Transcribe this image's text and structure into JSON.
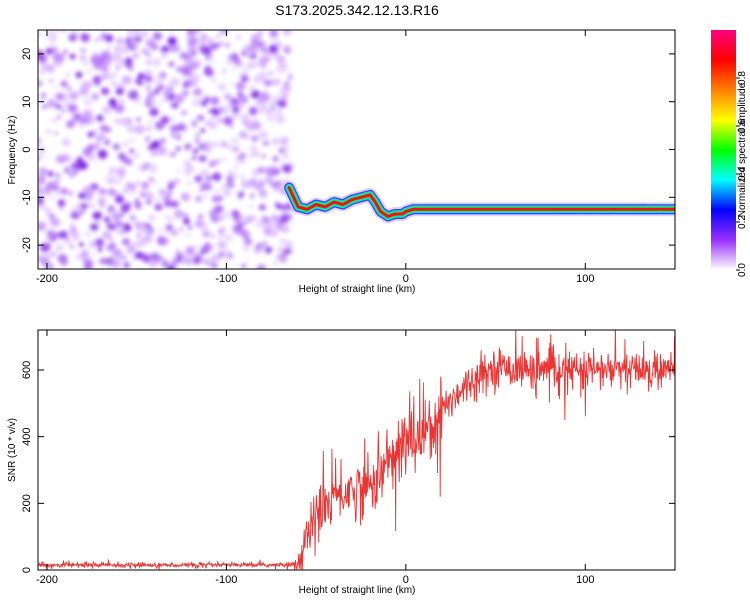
{
  "page_title": "S173.2025.342.12.13.R16",
  "chart_data": [
    {
      "type": "heatmap",
      "xlabel": "Height of straight line (km)",
      "ylabel": "Frequency (Hz)",
      "xlim": [
        -205,
        150
      ],
      "ylim": [
        -25,
        25
      ],
      "x_ticks": [
        -200,
        -100,
        0,
        100
      ],
      "y_ticks": [
        -20,
        -10,
        0,
        10,
        20
      ],
      "noise_region_x": [
        -205,
        -64
      ],
      "signal_track": {
        "x": [
          -65,
          -60,
          -55,
          -50,
          -45,
          -40,
          -35,
          -30,
          -25,
          -20,
          -17,
          -14,
          -10,
          -6,
          -2,
          0,
          4,
          8,
          12,
          16,
          20,
          25,
          150
        ],
        "y": [
          -8,
          -12,
          -12.5,
          -11.5,
          -12,
          -11,
          -11.5,
          -10.5,
          -10,
          -9.5,
          -11,
          -13,
          -14,
          -13.5,
          -13.5,
          -13,
          -12.5,
          -12.5,
          -12.5,
          -12.5,
          -12.5,
          -12.5,
          -12.5
        ]
      },
      "faint_band": {
        "x": [
          85,
          150
        ],
        "y": -12.5
      },
      "colorbar": {
        "label": "Normalized spectral amplitude",
        "ticks": [
          "0.0",
          "0.2",
          "0.4",
          "0.6",
          "0.8"
        ],
        "range": [
          0,
          1
        ],
        "colors": [
          "#ffffff",
          "#9b30ff",
          "#0000ff",
          "#00ffff",
          "#00ff00",
          "#ffff00",
          "#ff8000",
          "#ff0000",
          "#ff0080"
        ]
      }
    },
    {
      "type": "line",
      "xlabel": "Height of straight line (km)",
      "ylabel": "SNR (10 * v/v)",
      "xlim": [
        -205,
        150
      ],
      "ylim": [
        0,
        720
      ],
      "x_ticks": [
        -200,
        -100,
        0,
        100
      ],
      "y_ticks": [
        0,
        200,
        400,
        600
      ],
      "color": "#ee3333",
      "series": [
        {
          "x": [
            -205,
            -150,
            -100,
            -65,
            -60,
            -55,
            -50,
            -45,
            -40,
            -30,
            -20,
            -10,
            0,
            10,
            20,
            30,
            40,
            50,
            70,
            100,
            150
          ],
          "y": [
            15,
            15,
            15,
            15,
            20,
            100,
            180,
            200,
            220,
            240,
            250,
            320,
            380,
            420,
            480,
            540,
            580,
            610,
            600,
            600,
            600
          ]
        }
      ]
    }
  ]
}
